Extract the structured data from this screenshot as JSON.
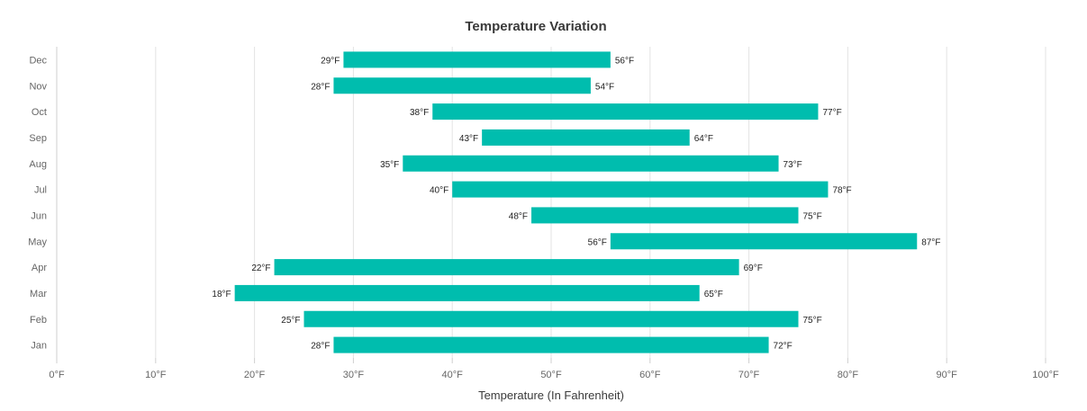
{
  "chart_data": {
    "type": "bar",
    "orientation": "horizontal",
    "range_bars": true,
    "title": "Temperature Variation",
    "xlabel": "Temperature (In Fahrenheit)",
    "ylabel": "",
    "xlim": [
      0,
      100
    ],
    "x_ticks": [
      "0°F",
      "10°F",
      "20°F",
      "30°F",
      "40°F",
      "50°F",
      "60°F",
      "70°F",
      "80°F",
      "90°F",
      "100°F"
    ],
    "x_tick_values": [
      0,
      10,
      20,
      30,
      40,
      50,
      60,
      70,
      80,
      90,
      100
    ],
    "grid": true,
    "legend": "none",
    "bar_color": "#00bdae",
    "unit_suffix": "°F",
    "categories": [
      "Jan",
      "Feb",
      "Mar",
      "Apr",
      "May",
      "Jun",
      "Jul",
      "Aug",
      "Sep",
      "Oct",
      "Nov",
      "Dec"
    ],
    "low": [
      28,
      25,
      18,
      22,
      56,
      48,
      40,
      35,
      43,
      38,
      28,
      29
    ],
    "high": [
      72,
      75,
      65,
      69,
      87,
      75,
      78,
      73,
      64,
      77,
      54,
      56
    ],
    "low_labels": [
      "28°F",
      "25°F",
      "18°F",
      "22°F",
      "56°F",
      "48°F",
      "40°F",
      "35°F",
      "43°F",
      "38°F",
      "28°F",
      "29°F"
    ],
    "high_labels": [
      "72°F",
      "75°F",
      "65°F",
      "69°F",
      "87°F",
      "75°F",
      "78°F",
      "73°F",
      "64°F",
      "77°F",
      "54°F",
      "56°F"
    ]
  }
}
